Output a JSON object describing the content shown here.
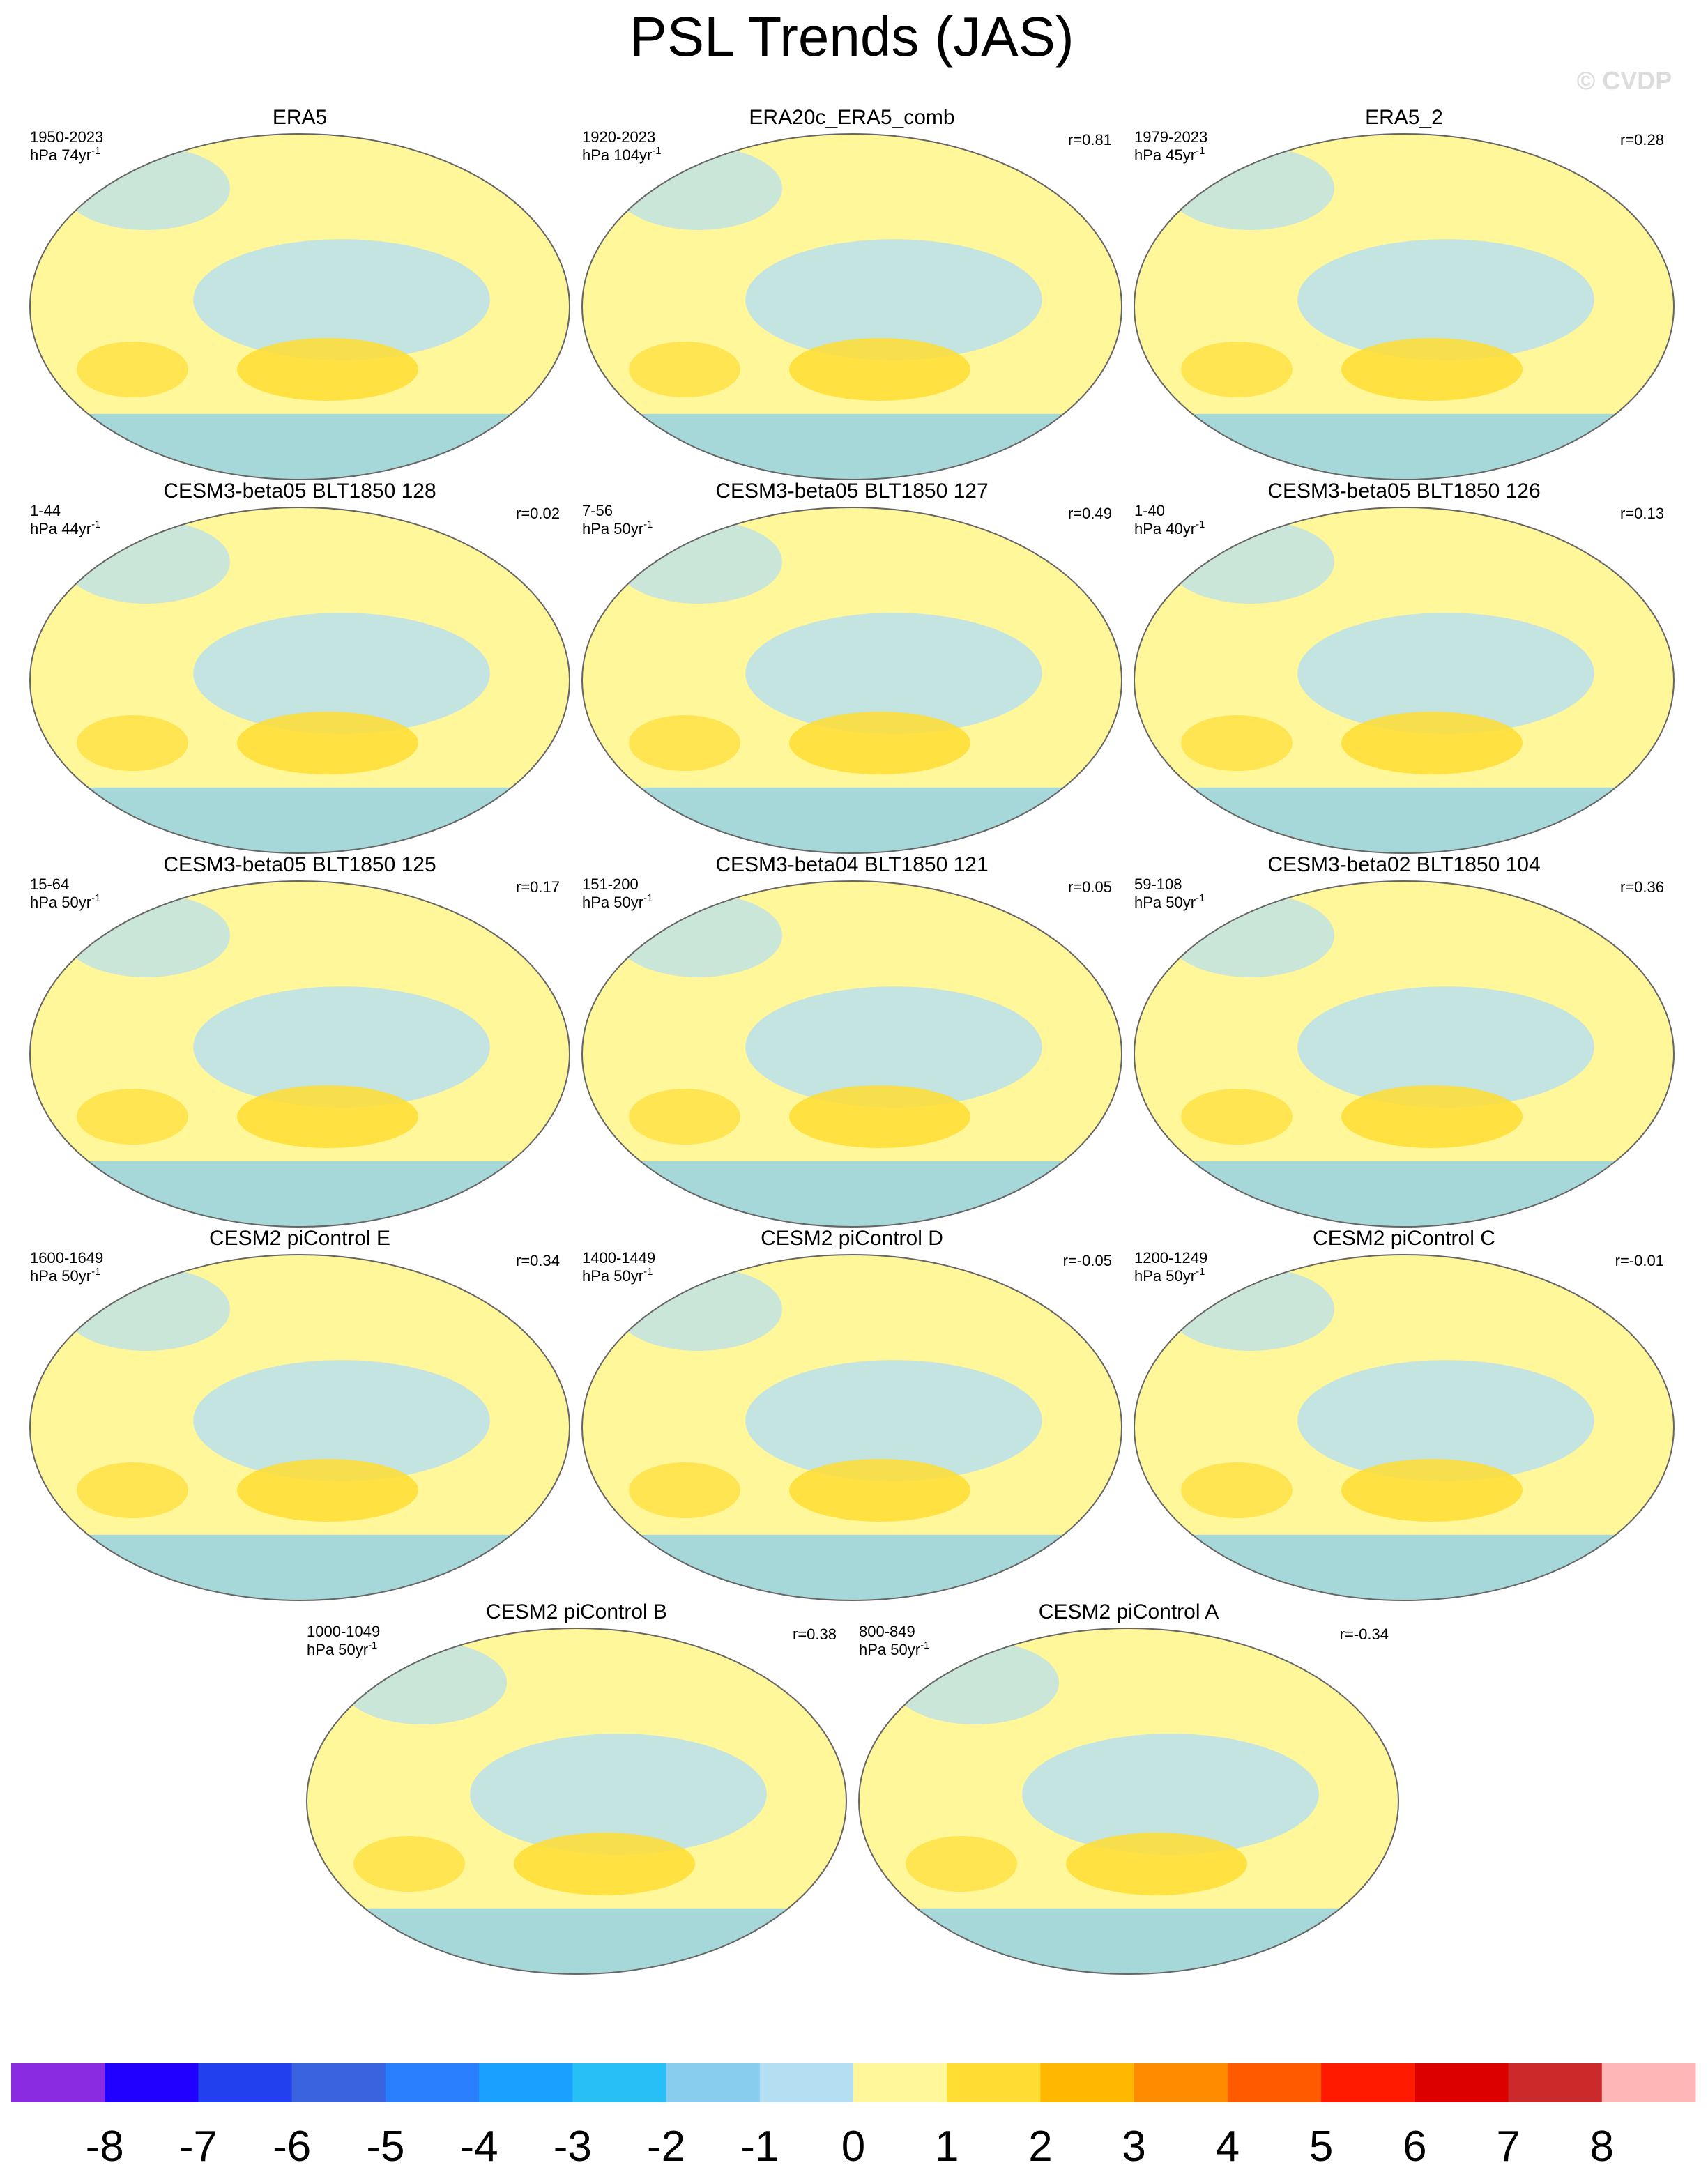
{
  "title": "PSL Trends (JAS)",
  "watermark": "© CVDP",
  "panels": [
    {
      "title": "ERA5",
      "period": "1950-2023",
      "units": {
        "text": "hPa 74yr",
        "sup": "-1"
      }
    },
    {
      "title": "ERA20c_ERA5_comb",
      "period": "1920-2023",
      "units": {
        "text": "hPa 104yr",
        "sup": "-1"
      },
      "r": "r=0.81"
    },
    {
      "title": "ERA5_2",
      "period": "1979-2023",
      "units": {
        "text": "hPa 45yr",
        "sup": "-1"
      },
      "r": "r=0.28"
    },
    {
      "title": "CESM3-beta05 BLT1850 128",
      "period": "1-44",
      "units": {
        "text": "hPa 44yr",
        "sup": "-1"
      },
      "r": "r=0.02"
    },
    {
      "title": "CESM3-beta05 BLT1850 127",
      "period": "7-56",
      "units": {
        "text": "hPa 50yr",
        "sup": "-1"
      },
      "r": "r=0.49"
    },
    {
      "title": "CESM3-beta05 BLT1850 126",
      "period": "1-40",
      "units": {
        "text": "hPa 40yr",
        "sup": "-1"
      },
      "r": "r=0.13"
    },
    {
      "title": "CESM3-beta05 BLT1850 125",
      "period": "15-64",
      "units": {
        "text": "hPa 50yr",
        "sup": "-1"
      },
      "r": "r=0.17"
    },
    {
      "title": "CESM3-beta04 BLT1850 121",
      "period": "151-200",
      "units": {
        "text": "hPa 50yr",
        "sup": "-1"
      },
      "r": "r=0.05"
    },
    {
      "title": "CESM3-beta02 BLT1850 104",
      "period": "59-108",
      "units": {
        "text": "hPa 50yr",
        "sup": "-1"
      },
      "r": "r=0.36"
    },
    {
      "title": "CESM2 piControl E",
      "period": "1600-1649",
      "units": {
        "text": "hPa 50yr",
        "sup": "-1"
      },
      "r": "r=0.34"
    },
    {
      "title": "CESM2 piControl D",
      "period": "1400-1449",
      "units": {
        "text": "hPa 50yr",
        "sup": "-1"
      },
      "r": "r=-0.05"
    },
    {
      "title": "CESM2 piControl C",
      "period": "1200-1249",
      "units": {
        "text": "hPa 50yr",
        "sup": "-1"
      },
      "r": "r=-0.01"
    },
    {
      "title": "CESM2 piControl B",
      "period": "1000-1049",
      "units": {
        "text": "hPa 50yr",
        "sup": "-1"
      },
      "r": "r=0.38"
    },
    {
      "title": "CESM2 piControl A",
      "period": "800-849",
      "units": {
        "text": "hPa 50yr",
        "sup": "-1"
      },
      "r": "r=-0.34"
    }
  ],
  "colorbar": {
    "colors": [
      "#8a2be2",
      "#2200ff",
      "#2240ee",
      "#3a63e0",
      "#2a7fff",
      "#1aa0ff",
      "#27bff5",
      "#88ccee",
      "#b4def2",
      "#fff79a",
      "#ffdd33",
      "#ffb700",
      "#ff8c00",
      "#ff5a00",
      "#ff1a00",
      "#dd0000",
      "#cc2a2a",
      "#ffb6b6"
    ],
    "ticks": [
      -8,
      -7,
      -6,
      -5,
      -4,
      -3,
      -2,
      -1,
      0,
      1,
      2,
      3,
      4,
      5,
      6,
      7,
      8
    ]
  }
}
